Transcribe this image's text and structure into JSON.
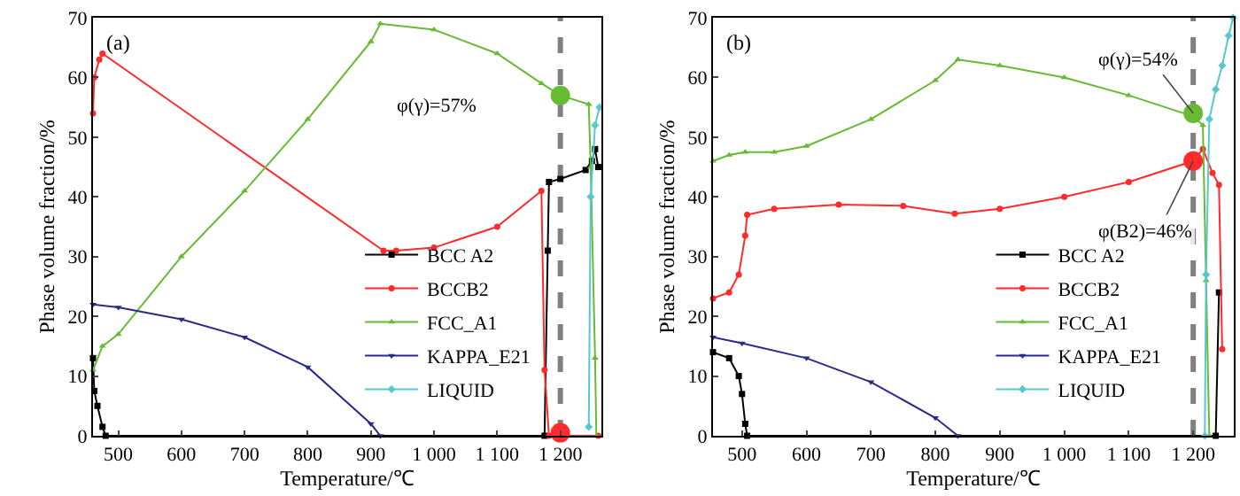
{
  "chart_data": [
    {
      "type": "line",
      "title": "(a)",
      "xlabel": "Temperature/℃",
      "ylabel": "Phase volume fraction/%",
      "xlim": [
        460,
        1265
      ],
      "ylim": [
        0,
        70
      ],
      "xticks": [
        500,
        600,
        700,
        800,
        900,
        {
          "value": 1000,
          "label": "1 000"
        },
        {
          "value": 1100,
          "label": "1 100"
        },
        {
          "value": 1200,
          "label": "1 200"
        }
      ],
      "yticks": [
        0,
        10,
        20,
        30,
        40,
        50,
        60,
        70
      ],
      "grid": false,
      "legend": "bottom right",
      "line_style": "solid",
      "series": [
        {
          "name": "BCC A2",
          "color": "#000000",
          "marker": "square",
          "x": [
            460,
            462,
            467,
            475,
            480,
            1175,
            1180,
            1182,
            1200,
            1240,
            1250,
            1255,
            1260
          ],
          "values": [
            13,
            7.5,
            5,
            1.5,
            0,
            0,
            31,
            42.5,
            43,
            44.5,
            46,
            48,
            45
          ]
        },
        {
          "name": "BCCB2",
          "color": "#ff2a2a",
          "marker": "circle",
          "x": [
            460,
            462,
            470,
            475,
            920,
            940,
            1000,
            1100,
            1170,
            1175,
            1182,
            1260
          ],
          "values": [
            54,
            60,
            63,
            64,
            31,
            31,
            31.5,
            35,
            41,
            11,
            0,
            0
          ]
        },
        {
          "name": "FCC_A1",
          "color": "#66bb33",
          "marker": "triangle",
          "x": [
            460,
            475,
            500,
            600,
            700,
            800,
            900,
            915,
            1000,
            1100,
            1170,
            1200,
            1245,
            1248,
            1255,
            1257
          ],
          "values": [
            11,
            15,
            17,
            30,
            41,
            53,
            66,
            69,
            68,
            64,
            59,
            57,
            55.5,
            45,
            13,
            0
          ]
        },
        {
          "name": "KAPPA_E21",
          "color": "#2a2a8a",
          "marker": "triangle-down",
          "x": [
            460,
            500,
            600,
            700,
            800,
            900,
            915
          ],
          "values": [
            22,
            21.5,
            19.5,
            16.5,
            11.5,
            2,
            0
          ]
        },
        {
          "name": "LIQUID",
          "color": "#55c8d0",
          "marker": "diamond",
          "x": [
            1245,
            1248,
            1255,
            1262
          ],
          "values": [
            1.5,
            40,
            52,
            55
          ]
        },
        {
          "type": "scatter",
          "color": "#66bb33",
          "marker": "circle",
          "x": [
            1200
          ],
          "values": [
            57
          ]
        },
        {
          "type": "scatter",
          "color": "#ff2a2a",
          "marker": "circle",
          "x": [
            1200
          ],
          "values": [
            0.5
          ]
        }
      ],
      "ref_lines": [
        {
          "axis": "x",
          "value": 1200,
          "color": "#808080",
          "line_style": "dashed"
        }
      ],
      "annotations": [
        "φ(γ)=57%"
      ]
    },
    {
      "type": "line",
      "title": "(b)",
      "xlabel": "Temperature/℃",
      "ylabel": "Phase volume fraction/%",
      "xlim": [
        455,
        1263
      ],
      "ylim": [
        0,
        70
      ],
      "xticks": [
        500,
        600,
        700,
        800,
        900,
        {
          "value": 1000,
          "label": "1 000"
        },
        {
          "value": 1100,
          "label": "1 100"
        },
        {
          "value": 1200,
          "label": "1 200"
        }
      ],
      "yticks": [
        0,
        10,
        20,
        30,
        40,
        50,
        60,
        70
      ],
      "grid": false,
      "legend": "bottom right",
      "line_style": "solid",
      "series": [
        {
          "name": "BCC A2",
          "color": "#000000",
          "marker": "square",
          "x": [
            455,
            480,
            495,
            500,
            505,
            508,
            1235,
            1240
          ],
          "values": [
            14,
            13,
            10,
            7,
            2,
            0,
            0,
            24
          ]
        },
        {
          "name": "BCCB2",
          "color": "#ff2a2a",
          "marker": "circle",
          "x": [
            455,
            480,
            495,
            505,
            508,
            550,
            650,
            750,
            830,
            900,
            1000,
            1100,
            1200,
            1215,
            1230,
            1240,
            1245
          ],
          "values": [
            23,
            24,
            27,
            33.5,
            37,
            38,
            38.7,
            38.5,
            37.2,
            38,
            40,
            42.5,
            46,
            48,
            44,
            42,
            14.5
          ]
        },
        {
          "name": "FCC_A1",
          "color": "#66bb33",
          "marker": "triangle",
          "x": [
            455,
            480,
            505,
            550,
            600,
            700,
            800,
            835,
            900,
            1000,
            1100,
            1200,
            1215,
            1220,
            1225
          ],
          "values": [
            46,
            47,
            47.5,
            47.5,
            48.5,
            53,
            59.5,
            63,
            62,
            60,
            57,
            53.5,
            52,
            26,
            0
          ]
        },
        {
          "name": "KAPPA_E21",
          "color": "#2a2a8a",
          "marker": "triangle-down",
          "x": [
            455,
            500,
            600,
            700,
            800,
            835
          ],
          "values": [
            16.5,
            15.5,
            13,
            9,
            3,
            0
          ]
        },
        {
          "name": "LIQUID",
          "color": "#55c8d0",
          "marker": "diamond",
          "x": [
            1218,
            1220,
            1225,
            1235,
            1245,
            1255,
            1262
          ],
          "values": [
            0,
            27,
            53,
            58,
            62,
            67,
            70
          ]
        },
        {
          "type": "scatter",
          "color": "#66bb33",
          "marker": "circle",
          "x": [
            1200
          ],
          "values": [
            54
          ]
        },
        {
          "type": "scatter",
          "color": "#ff2a2a",
          "marker": "circle",
          "x": [
            1200
          ],
          "values": [
            46
          ]
        }
      ],
      "ref_lines": [
        {
          "axis": "x",
          "value": 1200,
          "color": "#808080",
          "line_style": "dashed"
        }
      ],
      "annotations": [
        {
          "text": "φ(γ)=54%",
          "x": 1200,
          "y": 54
        },
        {
          "text": "φ(B2)=46%",
          "x": 1200,
          "y": 46
        }
      ]
    }
  ]
}
